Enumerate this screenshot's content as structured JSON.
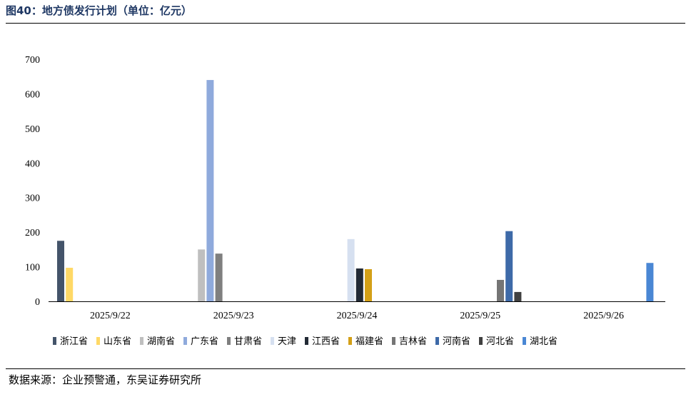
{
  "title": "图40：地方债发行计划（单位：亿元）",
  "source": "数据来源：企业预警通，东吴证券研究所",
  "chart_data": {
    "type": "bar",
    "title": "图40：地方债发行计划（单位：亿元）",
    "xlabel": "",
    "ylabel": "",
    "ylim": [
      0,
      700
    ],
    "yticks": [
      0,
      100,
      200,
      300,
      400,
      500,
      600,
      700
    ],
    "grid": false,
    "legend_position": "bottom",
    "categories": [
      "2025/9/22",
      "2025/9/23",
      "2025/9/24",
      "2025/9/25",
      "2025/9/26"
    ],
    "series": [
      {
        "name": "浙江省",
        "color": "#44546a",
        "values": [
          175,
          null,
          null,
          null,
          null
        ]
      },
      {
        "name": "山东省",
        "color": "#ffd966",
        "values": [
          97,
          null,
          null,
          null,
          null
        ]
      },
      {
        "name": "湖南省",
        "color": "#bfbfbf",
        "values": [
          null,
          150,
          null,
          null,
          null
        ]
      },
      {
        "name": "广东省",
        "color": "#8faadc",
        "values": [
          null,
          640,
          null,
          null,
          null
        ]
      },
      {
        "name": "甘肃省",
        "color": "#7f7f7f",
        "values": [
          null,
          138,
          null,
          null,
          null
        ]
      },
      {
        "name": "天津",
        "color": "#d6e0f0",
        "values": [
          null,
          null,
          180,
          null,
          null
        ]
      },
      {
        "name": "江西省",
        "color": "#222a35",
        "values": [
          null,
          null,
          95,
          null,
          null
        ]
      },
      {
        "name": "福建省",
        "color": "#d4a017",
        "values": [
          null,
          null,
          93,
          null,
          null
        ]
      },
      {
        "name": "吉林省",
        "color": "#757575",
        "values": [
          null,
          null,
          null,
          62,
          null
        ]
      },
      {
        "name": "河南省",
        "color": "#3e6aa8",
        "values": [
          null,
          null,
          null,
          203,
          null
        ]
      },
      {
        "name": "河北省",
        "color": "#404040",
        "values": [
          null,
          null,
          null,
          27,
          null
        ]
      },
      {
        "name": "湖北省",
        "color": "#4a87d4",
        "values": [
          null,
          null,
          null,
          null,
          111
        ]
      }
    ]
  }
}
